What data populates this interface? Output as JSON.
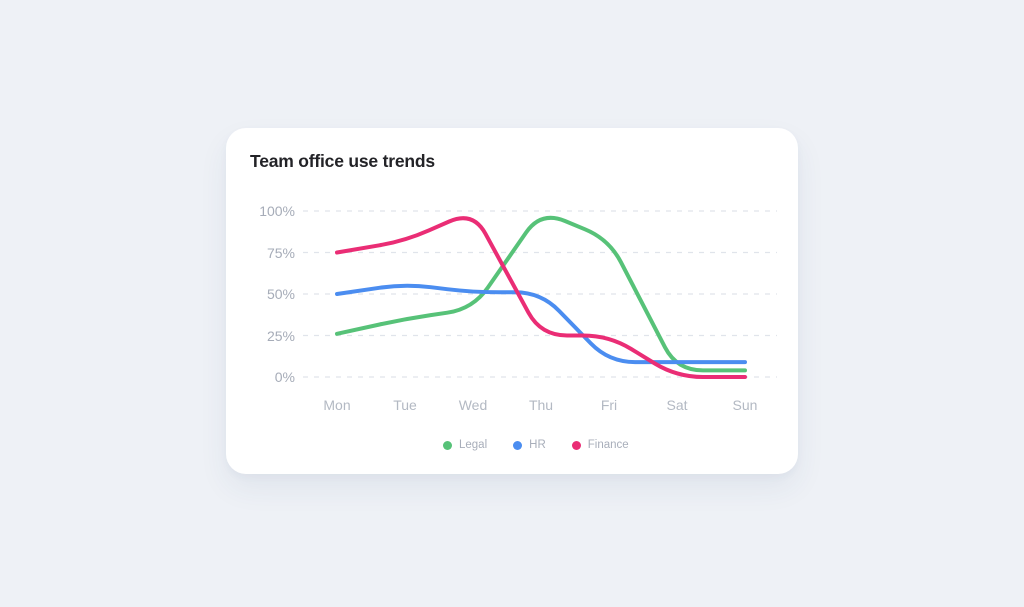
{
  "page": {
    "background": "#eef1f6"
  },
  "card": {
    "title": "Team office use trends"
  },
  "chart_data": {
    "type": "line",
    "title": "Team office use trends",
    "categories": [
      "Mon",
      "Tue",
      "Wed",
      "Thu",
      "Fri",
      "Sat",
      "Sun"
    ],
    "series": [
      {
        "name": "Legal",
        "color": "#57c278",
        "values": [
          26,
          35,
          41,
          100,
          83,
          4,
          4
        ]
      },
      {
        "name": "HR",
        "color": "#4b8df0",
        "values": [
          50,
          56,
          51,
          51,
          9,
          9,
          9
        ]
      },
      {
        "name": "Finance",
        "color": "#ea2d75",
        "values": [
          75,
          82,
          100,
          25,
          25,
          0,
          0
        ]
      }
    ],
    "ylim": [
      0,
      100
    ],
    "y_ticks": [
      0,
      25,
      50,
      75,
      100
    ],
    "y_tick_labels": [
      "0%",
      "25%",
      "50%",
      "75%",
      "100%"
    ],
    "y_unit": "%",
    "grid": "horizontal dashed",
    "grid_color": "#e0e4eb",
    "legend_position": "bottom"
  }
}
